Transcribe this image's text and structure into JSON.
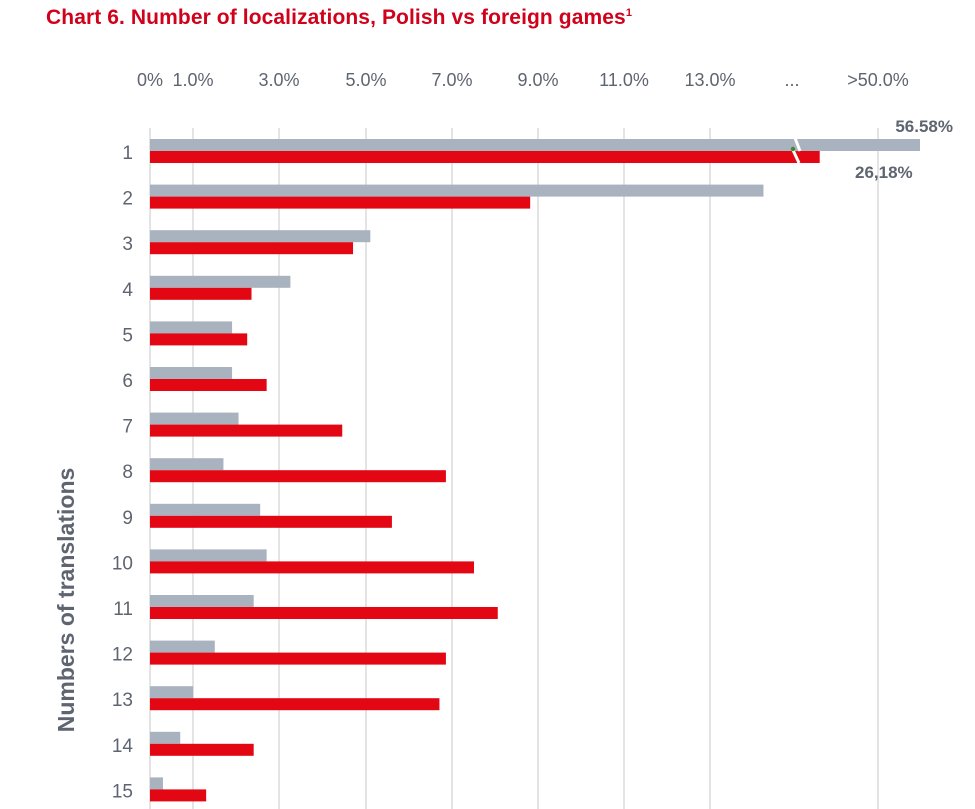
{
  "title": "Chart 6. Number of localizations, Polish vs foreign games",
  "title_footnote": "1",
  "colors": {
    "title": "#d0021b",
    "polish": "#e30613",
    "foreign": "#a9b2bf",
    "grid": "#c8c8c8",
    "text": "#5e6570"
  },
  "chart_data": {
    "type": "bar",
    "orientation": "horizontal",
    "ylabel": "Numbers of translations",
    "categories": [
      "1",
      "2",
      "3",
      "4",
      "5",
      "6",
      "7",
      "8",
      "9",
      "10",
      "11",
      "12",
      "13",
      "14",
      "15"
    ],
    "x_ticks": [
      "0%",
      "1.0%",
      "3.0%",
      "5.0%",
      "7.0%",
      "9.0%",
      "11.0%",
      "13.0%",
      "...",
      ">50.0%"
    ],
    "x_tick_values": [
      0,
      1,
      3,
      5,
      7,
      9,
      11,
      13,
      null,
      50
    ],
    "xlim": [
      0,
      17.8
    ],
    "axis_break": true,
    "grid": true,
    "series": [
      {
        "key": "foreign",
        "values": [
          56.58,
          14.2,
          5.1,
          3.25,
          1.9,
          1.9,
          2.05,
          1.7,
          2.55,
          2.7,
          2.4,
          1.5,
          1.0,
          0.7,
          0.3
        ]
      },
      {
        "key": "polish",
        "values": [
          26.18,
          8.8,
          4.7,
          2.35,
          2.25,
          2.7,
          4.45,
          6.85,
          5.6,
          7.5,
          8.05,
          6.85,
          6.7,
          2.4,
          1.3
        ]
      }
    ],
    "data_labels": [
      {
        "series": "foreign",
        "category": "1",
        "text": "56.58%"
      },
      {
        "series": "polish",
        "category": "1",
        "text": "26,18%"
      }
    ]
  }
}
